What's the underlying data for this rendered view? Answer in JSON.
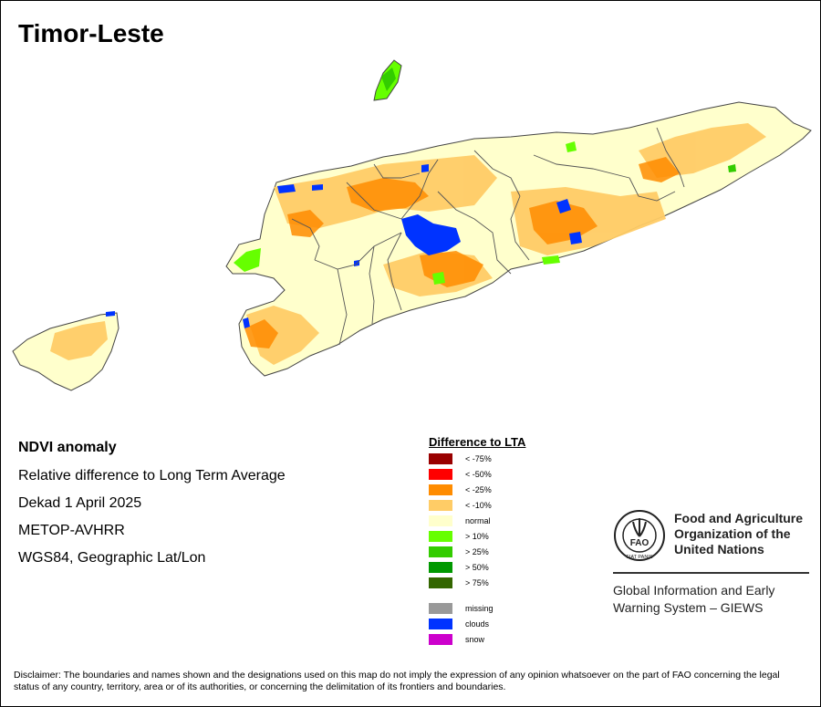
{
  "title": "Timor-Leste",
  "info": {
    "title": "NDVI anomaly",
    "line1": "Relative difference to Long Term Average",
    "line2": "Dekad 1 April 2025",
    "line3": "METOP-AVHRR",
    "line4": "WGS84, Geographic Lat/Lon"
  },
  "legend": {
    "title": "Difference to LTA",
    "classes": [
      {
        "label": "< -75%",
        "color": "#990000"
      },
      {
        "label": "< -50%",
        "color": "#ff0000"
      },
      {
        "label": "< -25%",
        "color": "#ff8c00"
      },
      {
        "label": "< -10%",
        "color": "#ffcc66"
      },
      {
        "label": "normal",
        "color": "#ffffcc"
      },
      {
        "label": "> 10%",
        "color": "#66ff00"
      },
      {
        "label": "> 25%",
        "color": "#33cc00"
      },
      {
        "label": "> 50%",
        "color": "#009900"
      },
      {
        "label": "> 75%",
        "color": "#336600"
      }
    ],
    "other": [
      {
        "label": "missing",
        "color": "#999999"
      },
      {
        "label": "clouds",
        "color": "#0033ff"
      },
      {
        "label": "snow",
        "color": "#cc00cc"
      }
    ]
  },
  "fao": {
    "name_line1": "Food and Agriculture",
    "name_line2": "Organization of the",
    "name_line3": "United Nations",
    "giews_line1": "Global Information and Early",
    "giews_line2": "Warning System – GIEWS",
    "logo_text": "FAO",
    "logo_motto": "FIAT PANIS"
  },
  "disclaimer": "Disclaimer: The boundaries and names shown and the designations used on this map do not imply the expression of any opinion whatsoever on the part of FAO concerning the legal status of any country, territory, area or of its authorities, or concerning the delimitation of its frontiers and boundaries.",
  "colors": {
    "normal": "#ffffcc",
    "below10": "#ffcc66",
    "below25": "#ff8c00",
    "above10": "#66ff00",
    "above25": "#33cc00",
    "clouds": "#0033ff",
    "boundary": "#555555"
  }
}
